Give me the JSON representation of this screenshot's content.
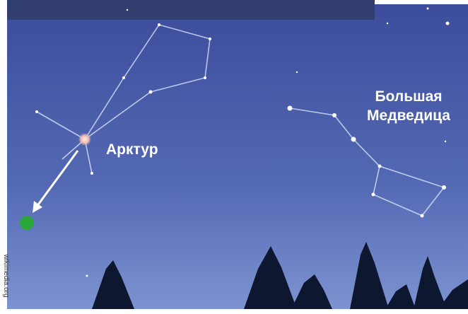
{
  "labels": {
    "star": "Арктур",
    "constellation": [
      "Большая",
      "Медведица"
    ]
  },
  "credit": "wikimedia.org"
}
